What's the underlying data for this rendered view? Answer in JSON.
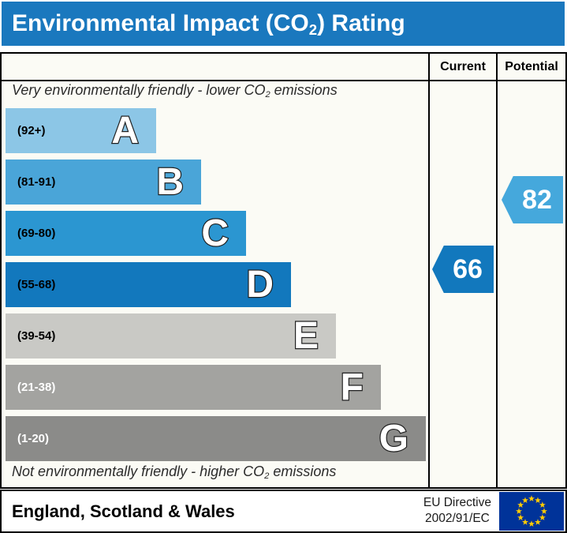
{
  "title": {
    "prefix": "Environmental Impact (CO",
    "subscript": "2",
    "suffix": ") Rating"
  },
  "header": {
    "current_label": "Current",
    "potential_label": "Potential"
  },
  "notes": {
    "top": {
      "prefix": "Very environmentally friendly - lower CO",
      "subscript": "2",
      "suffix": " emissions"
    },
    "bottom": {
      "prefix": "Not environmentally friendly - higher CO",
      "subscript": "2",
      "suffix": " emissions"
    }
  },
  "chart_data": {
    "type": "bar",
    "orientation": "horizontal",
    "title": "Environmental Impact (CO2) Rating",
    "bands": [
      {
        "letter": "A",
        "range_label": "(92+)",
        "min": 92,
        "max": 100,
        "color": "#8cc6e6",
        "label_color": "#000000"
      },
      {
        "letter": "B",
        "range_label": "(81-91)",
        "min": 81,
        "max": 91,
        "color": "#4aa5d8",
        "label_color": "#000000"
      },
      {
        "letter": "C",
        "range_label": "(69-80)",
        "min": 69,
        "max": 80,
        "color": "#2b96d1",
        "label_color": "#000000"
      },
      {
        "letter": "D",
        "range_label": "(55-68)",
        "min": 55,
        "max": 68,
        "color": "#1278bd",
        "label_color": "#000000"
      },
      {
        "letter": "E",
        "range_label": "(39-54)",
        "min": 39,
        "max": 54,
        "color": "#c9c9c5",
        "label_color": "#000000"
      },
      {
        "letter": "F",
        "range_label": "(21-38)",
        "min": 21,
        "max": 38,
        "color": "#a3a3a0",
        "label_color": "#ffffff"
      },
      {
        "letter": "G",
        "range_label": "(1-20)",
        "min": 1,
        "max": 20,
        "color": "#8b8b89",
        "label_color": "#ffffff"
      }
    ],
    "current": {
      "value": 66,
      "band": "D",
      "color": "#1278bd"
    },
    "potential": {
      "value": 82,
      "band": "B",
      "color": "#45a8dc"
    }
  },
  "footer": {
    "region": "England, Scotland & Wales",
    "directive_line1": "EU Directive",
    "directive_line2": "2002/91/EC"
  },
  "colors": {
    "titlebar": "#1a78be",
    "chart_bg": "#fbfbf5",
    "flag_blue": "#003399",
    "flag_star": "#ffcc00"
  }
}
